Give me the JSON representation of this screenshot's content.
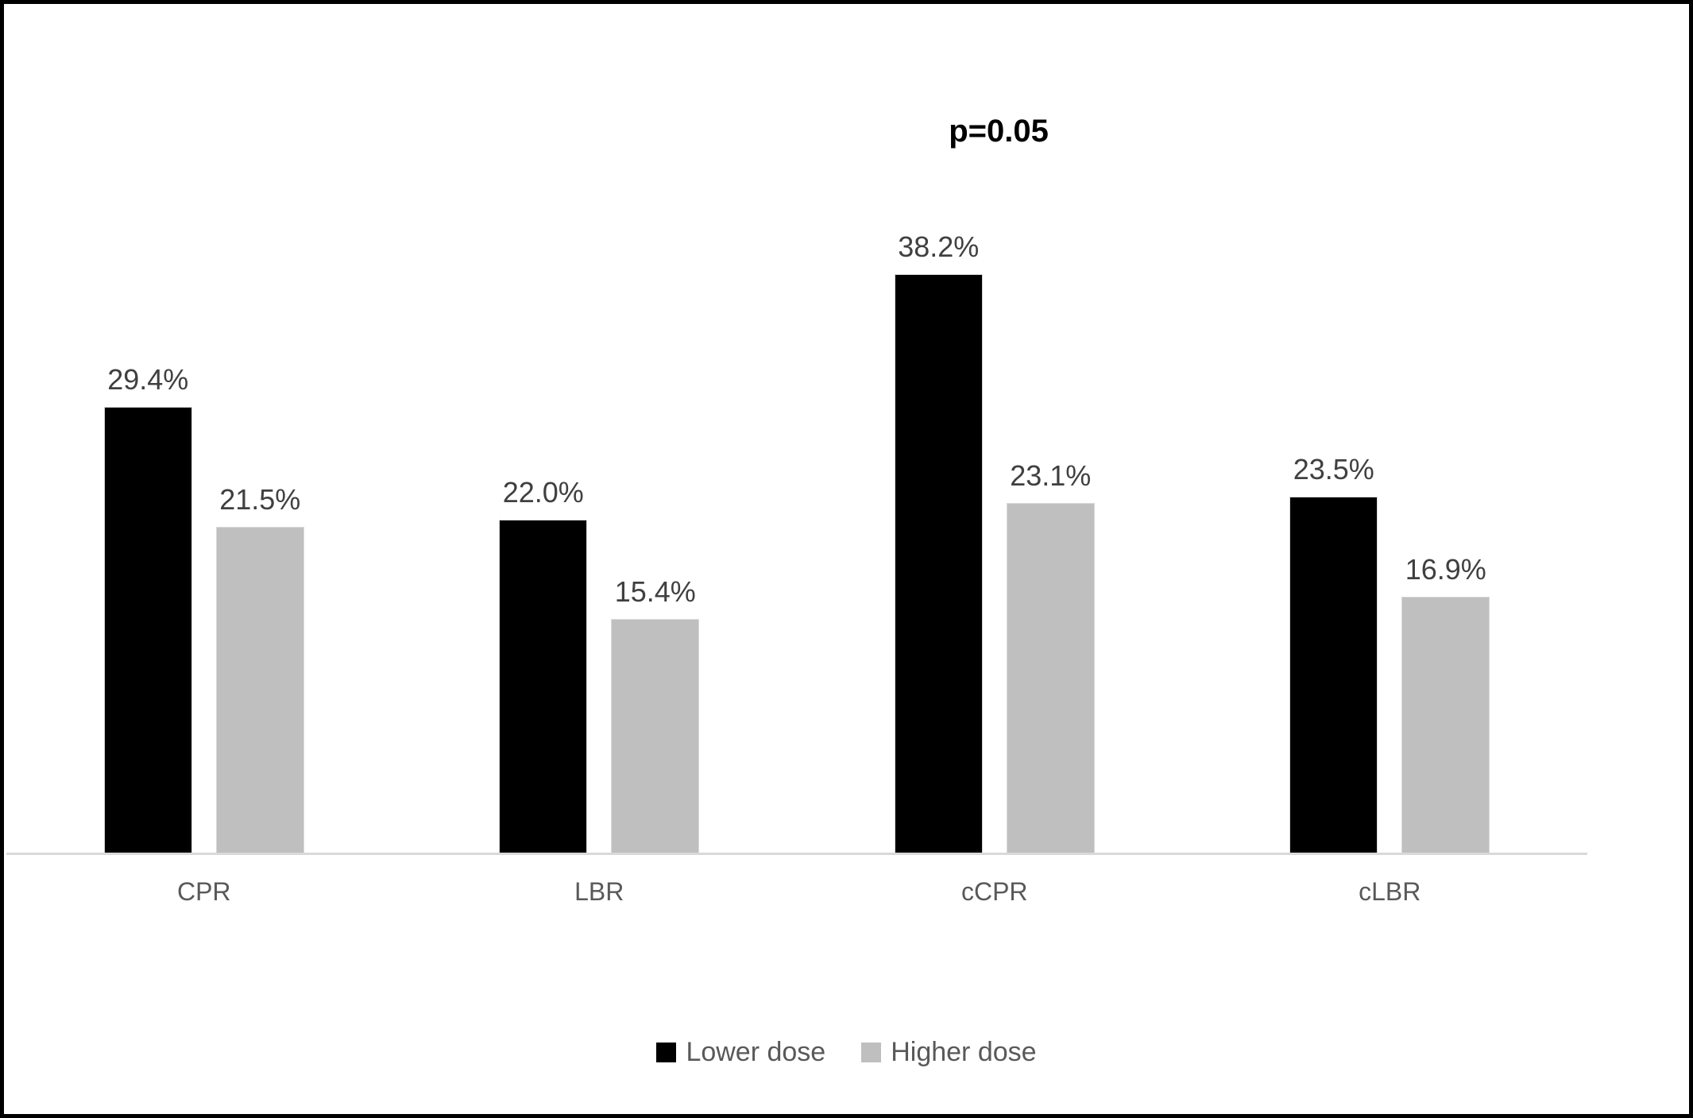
{
  "frame": {
    "background_color": "#ffffff",
    "border_color": "#000000"
  },
  "chart_data": {
    "type": "bar",
    "title": "p=0.05",
    "categories": [
      "CPR",
      "LBR",
      "cCPR",
      "cLBR"
    ],
    "series": [
      {
        "name": "Lower dose",
        "color": "#000000",
        "values": [
          29.4,
          22.0,
          38.2,
          23.5
        ],
        "labels": [
          "29.4%",
          "22.0%",
          "38.2%",
          "23.5%"
        ]
      },
      {
        "name": "Higher dose",
        "color": "#bfbfbf",
        "values": [
          21.5,
          15.4,
          23.1,
          16.9
        ],
        "labels": [
          "21.5%",
          "15.4%",
          "23.1%",
          "16.9%"
        ]
      }
    ],
    "xlabel": "",
    "ylabel": "",
    "ylim": [
      0,
      45
    ],
    "grid": false,
    "y_axis_visible": false,
    "axis_line_color": "#d9d9d9",
    "data_label_color": "#404040",
    "category_label_color": "#595959",
    "legend_position": "bottom"
  }
}
